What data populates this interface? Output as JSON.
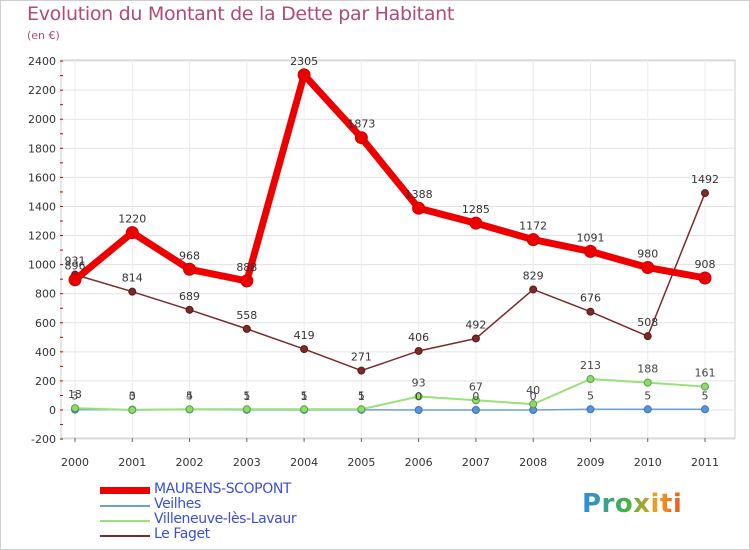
{
  "chart_data": {
    "type": "line",
    "title": "Evolution du Montant de la Dette par Habitant",
    "subtitle": "(en €)",
    "xlabel": "",
    "ylabel": "",
    "x": [
      "2000",
      "2001",
      "2002",
      "2003",
      "2004",
      "2005",
      "2006",
      "2007",
      "2008",
      "2009",
      "2010",
      "2011"
    ],
    "ylim": [
      -200,
      2400
    ],
    "yticks": [
      -200,
      0,
      200,
      400,
      600,
      800,
      1000,
      1200,
      1400,
      1600,
      1800,
      2000,
      2200,
      2400
    ],
    "grid": true,
    "legend_position": "bottom-left",
    "series": [
      {
        "name": "MAURENS-SCOPONT",
        "color": "#ee0000",
        "values": [
          896,
          1220,
          968,
          888,
          2305,
          1873,
          1388,
          1285,
          1172,
          1091,
          980,
          908
        ]
      },
      {
        "name": "Veilhes",
        "color": "#6aa0d8",
        "values": [
          3,
          3,
          4,
          1,
          1,
          1,
          0,
          0,
          0,
          5,
          5,
          5
        ]
      },
      {
        "name": "Villeneuve-lès-Lavaur",
        "color": "#99e17a",
        "values": [
          13,
          0,
          5,
          5,
          5,
          5,
          93,
          67,
          40,
          213,
          188,
          161
        ]
      },
      {
        "name": "Le Faget",
        "color": "#7a2a2a",
        "values": [
          931,
          814,
          689,
          558,
          419,
          271,
          406,
          492,
          829,
          676,
          508,
          1492
        ]
      }
    ]
  },
  "logo_text": "Proxiti"
}
